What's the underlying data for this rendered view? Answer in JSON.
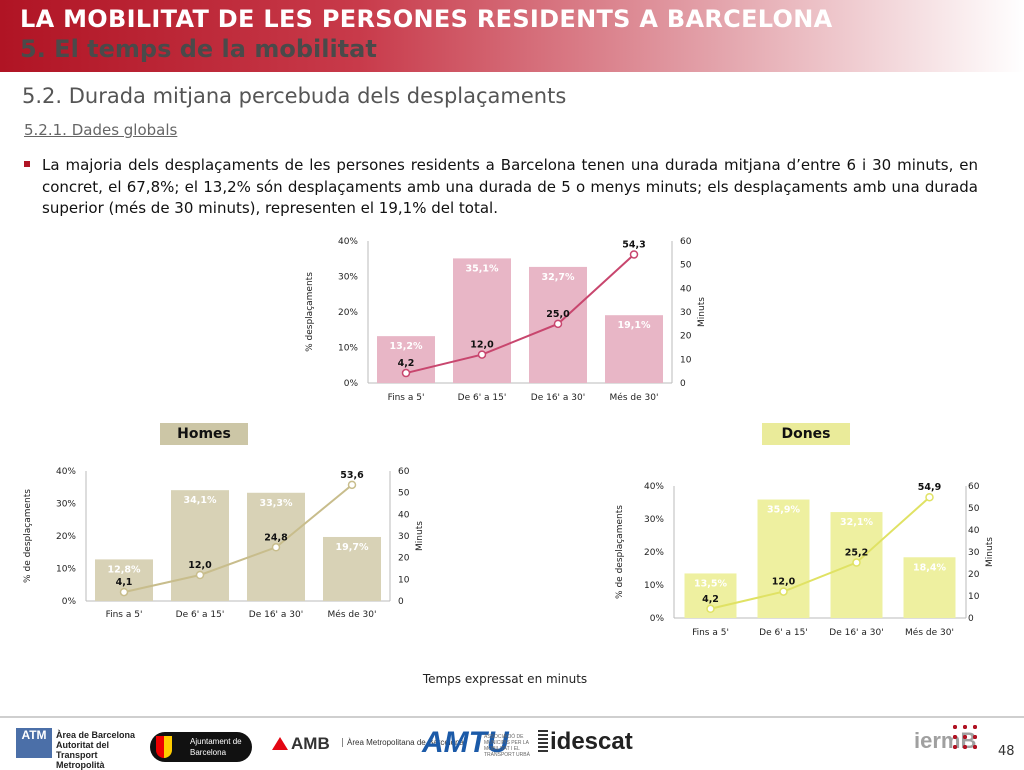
{
  "header": {
    "title": "LA MOBILITAT DE LES PERSONES RESIDENTS A BARCELONA",
    "subtitle": "5. El temps de la mobilitat"
  },
  "section": {
    "title": "5.2. Durada mitjana percebuda dels desplaçaments",
    "subtitle": "5.2.1. Dades globals"
  },
  "bullet": "La majoria dels desplaçaments de les persones residents a Barcelona tenen una durada mitjana d’entre 6 i 30 minuts, en concret, el 67,8%; el 13,2% són desplaçaments amb una durada de 5 o menys minuts; els desplaçaments amb una durada superior (més de 30 minuts), representen el 19,1% del total.",
  "tags": {
    "homes": "Homes",
    "dones": "Dones"
  },
  "note": "Temps expressat en minuts",
  "footer": {
    "atm": "ATM",
    "atm_text": "Àrea de Barcelona Autoritat del Transport Metropolità",
    "bcn": "Ajuntament de Barcelona",
    "amb": "AMB",
    "amb_sub": "Àrea Metropolitana de Barcelona",
    "amtu": "AMTU",
    "amtu_sub": "ASSOCIACIÓ DE MUNICIPIS PER LA MOBILITAT I EL TRANSPORT URBÀ",
    "idescat": "idescat",
    "ierm": "iermB",
    "page": "48"
  },
  "colors": {
    "total_bar": "#e8b6c6",
    "total_line": "#c8466e",
    "homes_bar": "#d8d2b6",
    "homes_line": "#c8bd8c",
    "dones_bar": "#eef0a0",
    "dones_line": "#e0e264"
  },
  "chart_data": [
    {
      "type": "bar",
      "id": "total",
      "categories": [
        "Fins a 5'",
        "De 6' a 15'",
        "De 16' a 30'",
        "Més de 30'"
      ],
      "series": [
        {
          "values": [
            13.2,
            35.1,
            32.7,
            19.1
          ],
          "labels": [
            "13,2%",
            "35,1%",
            "32,7%",
            "19,1%"
          ],
          "axis": "left"
        },
        {
          "type": "line",
          "values": [
            4.2,
            12.0,
            25.0,
            54.3
          ],
          "labels": [
            "4,2",
            "12,0",
            "25,0",
            "54,3"
          ],
          "axis": "right"
        }
      ],
      "ylabel": "% desplaçaments",
      "y2label": "Minuts",
      "ylim": [
        0,
        40
      ],
      "y2lim": [
        0,
        60
      ],
      "yticks": [
        "0%",
        "10%",
        "20%",
        "30%",
        "40%"
      ],
      "y2ticks": [
        "0",
        "10",
        "20",
        "30",
        "40",
        "50",
        "60"
      ]
    },
    {
      "type": "bar",
      "id": "homes",
      "categories": [
        "Fins a 5'",
        "De 6' a 15'",
        "De 16' a 30'",
        "Més de 30'"
      ],
      "series": [
        {
          "values": [
            12.8,
            34.1,
            33.3,
            19.7
          ],
          "labels": [
            "12,8%",
            "34,1%",
            "33,3%",
            "19,7%"
          ],
          "axis": "left"
        },
        {
          "type": "line",
          "values": [
            4.1,
            12.0,
            24.8,
            53.6
          ],
          "labels": [
            "4,1",
            "12,0",
            "24,8",
            "53,6"
          ],
          "axis": "right"
        }
      ],
      "ylabel": "% de desplaçaments",
      "y2label": "Minuts",
      "ylim": [
        0,
        40
      ],
      "y2lim": [
        0,
        60
      ],
      "yticks": [
        "0%",
        "10%",
        "20%",
        "30%",
        "40%"
      ],
      "y2ticks": [
        "0",
        "10",
        "20",
        "30",
        "40",
        "50",
        "60"
      ]
    },
    {
      "type": "bar",
      "id": "dones",
      "categories": [
        "Fins a 5'",
        "De 6' a 15'",
        "De 16' a 30'",
        "Més de 30'"
      ],
      "series": [
        {
          "values": [
            13.5,
            35.9,
            32.1,
            18.4
          ],
          "labels": [
            "13,5%",
            "35,9%",
            "32,1%",
            "18,4%"
          ],
          "axis": "left"
        },
        {
          "type": "line",
          "values": [
            4.2,
            12.0,
            25.2,
            54.9
          ],
          "labels": [
            "4,2",
            "12,0",
            "25,2",
            "54,9"
          ],
          "axis": "right"
        }
      ],
      "ylabel": "% de desplaçaments",
      "y2label": "Minuts",
      "ylim": [
        0,
        40
      ],
      "y2lim": [
        0,
        60
      ],
      "yticks": [
        "0%",
        "10%",
        "20%",
        "30%",
        "40%"
      ],
      "y2ticks": [
        "0",
        "10",
        "20",
        "30",
        "40",
        "50",
        "60"
      ]
    }
  ]
}
